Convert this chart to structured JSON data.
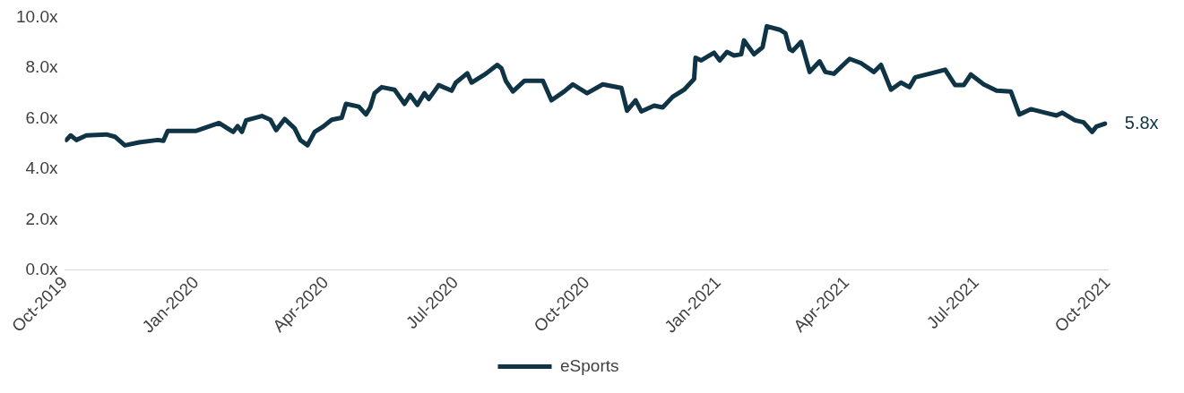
{
  "chart_data": {
    "type": "line",
    "legend": "bottom",
    "grid": false,
    "marker": "none",
    "line_style": "solid",
    "xlim": [
      "2019-10-01",
      "2021-10-01"
    ],
    "xticks": [
      {
        "value": "2019-10-01",
        "label": "Oct-2019"
      },
      {
        "value": "2020-01-01",
        "label": "Jan-2020"
      },
      {
        "value": "2020-04-01",
        "label": "Apr-2020"
      },
      {
        "value": "2020-07-01",
        "label": "Jul-2020"
      },
      {
        "value": "2020-10-01",
        "label": "Oct-2020"
      },
      {
        "value": "2021-01-01",
        "label": "Jan-2021"
      },
      {
        "value": "2021-04-01",
        "label": "Apr-2021"
      },
      {
        "value": "2021-07-01",
        "label": "Jul-2021"
      },
      {
        "value": "2021-10-01",
        "label": "Oct-2021"
      }
    ],
    "ylim": [
      0,
      10
    ],
    "yticks": [
      {
        "value": 0,
        "label": "0.0x"
      },
      {
        "value": 2,
        "label": "2.0x"
      },
      {
        "value": 4,
        "label": "4.0x"
      },
      {
        "value": 6,
        "label": "6.0x"
      },
      {
        "value": 8,
        "label": "8.0x"
      },
      {
        "value": 10,
        "label": "10.0x"
      }
    ],
    "annotations": [
      {
        "text": "5.8x",
        "x": "2021-09-29",
        "y": 5.8
      }
    ],
    "x": [
      "2019-10-02",
      "2019-10-05",
      "2019-10-09",
      "2019-10-16",
      "2019-10-30",
      "2019-11-05",
      "2019-11-12",
      "2019-11-22",
      "2019-12-05",
      "2019-12-09",
      "2019-12-12",
      "2020-01-01",
      "2020-01-17",
      "2020-01-27",
      "2020-01-30",
      "2020-02-02",
      "2020-02-05",
      "2020-02-16",
      "2020-02-22",
      "2020-02-26",
      "2020-03-03",
      "2020-03-10",
      "2020-03-14",
      "2020-03-19",
      "2020-03-24",
      "2020-03-30",
      "2020-04-05",
      "2020-04-12",
      "2020-04-15",
      "2020-04-24",
      "2020-04-29",
      "2020-05-02",
      "2020-05-05",
      "2020-05-10",
      "2020-05-19",
      "2020-05-26",
      "2020-05-30",
      "2020-06-04",
      "2020-06-09",
      "2020-06-12",
      "2020-06-19",
      "2020-06-28",
      "2020-07-01",
      "2020-07-09",
      "2020-07-12",
      "2020-07-22",
      "2020-07-30",
      "2020-08-02",
      "2020-08-05",
      "2020-08-10",
      "2020-08-18",
      "2020-08-31",
      "2020-09-06",
      "2020-09-15",
      "2020-09-21",
      "2020-10-01",
      "2020-10-12",
      "2020-10-25",
      "2020-10-29",
      "2020-11-04",
      "2020-11-08",
      "2020-11-17",
      "2020-11-23",
      "2020-11-30",
      "2020-12-08",
      "2020-12-15",
      "2020-12-16",
      "2020-12-20",
      "2020-12-29",
      "2021-01-02",
      "2021-01-07",
      "2021-01-12",
      "2021-01-17",
      "2021-01-19",
      "2021-01-26",
      "2021-02-01",
      "2021-02-04",
      "2021-02-13",
      "2021-02-17",
      "2021-02-20",
      "2021-02-22",
      "2021-02-28",
      "2021-03-06",
      "2021-03-13",
      "2021-03-17",
      "2021-03-23",
      "2021-04-03",
      "2021-04-11",
      "2021-04-20",
      "2021-04-25",
      "2021-05-02",
      "2021-05-09",
      "2021-05-15",
      "2021-05-19",
      "2021-05-29",
      "2021-06-09",
      "2021-06-16",
      "2021-06-22",
      "2021-06-27",
      "2021-07-06",
      "2021-07-15",
      "2021-07-25",
      "2021-07-31",
      "2021-08-08",
      "2021-08-18",
      "2021-08-26",
      "2021-08-30",
      "2021-09-08",
      "2021-09-14",
      "2021-09-20",
      "2021-09-23",
      "2021-09-29"
    ],
    "series": [
      {
        "name": "eSports",
        "color": "#0e3446",
        "values": [
          5.15,
          5.33,
          5.15,
          5.33,
          5.37,
          5.28,
          4.94,
          5.06,
          5.15,
          5.12,
          5.51,
          5.51,
          5.82,
          5.47,
          5.7,
          5.47,
          5.93,
          6.1,
          5.95,
          5.54,
          5.98,
          5.61,
          5.15,
          4.94,
          5.47,
          5.68,
          5.95,
          6.03,
          6.58,
          6.47,
          6.16,
          6.44,
          7.0,
          7.24,
          7.14,
          6.58,
          6.93,
          6.54,
          7.0,
          6.77,
          7.32,
          7.1,
          7.42,
          7.79,
          7.42,
          7.77,
          8.12,
          7.98,
          7.49,
          7.07,
          7.49,
          7.49,
          6.72,
          7.07,
          7.35,
          7.0,
          7.35,
          7.21,
          6.31,
          6.72,
          6.28,
          6.51,
          6.44,
          6.86,
          7.14,
          7.56,
          8.4,
          8.3,
          8.6,
          8.3,
          8.63,
          8.49,
          8.54,
          9.09,
          8.54,
          8.82,
          9.65,
          9.51,
          9.37,
          8.74,
          8.67,
          9.03,
          7.84,
          8.26,
          7.84,
          7.77,
          8.36,
          8.19,
          7.84,
          8.12,
          7.14,
          7.42,
          7.24,
          7.63,
          7.77,
          7.93,
          7.32,
          7.32,
          7.74,
          7.35,
          7.1,
          7.07,
          6.16,
          6.37,
          6.23,
          6.12,
          6.23,
          5.93,
          5.85,
          5.47,
          5.68,
          5.8
        ]
      }
    ]
  }
}
